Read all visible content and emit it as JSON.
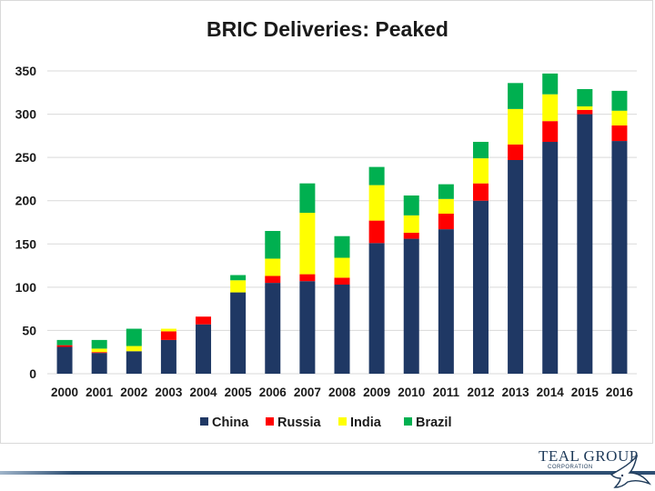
{
  "chart_data": {
    "type": "bar",
    "stacked": true,
    "title": "BRIC Deliveries: Peaked",
    "xlabel": "",
    "ylabel": "",
    "ylim": [
      0,
      350
    ],
    "yticks": [
      0,
      50,
      100,
      150,
      200,
      250,
      300,
      350
    ],
    "grid": true,
    "legend_position": "bottom",
    "categories": [
      "2000",
      "2001",
      "2002",
      "2003",
      "2004",
      "2005",
      "2006",
      "2007",
      "2008",
      "2009",
      "2010",
      "2011",
      "2012",
      "2013",
      "2014",
      "2015",
      "2016"
    ],
    "series": [
      {
        "name": "China",
        "color": "#1f3864",
        "values": [
          31,
          24,
          26,
          39,
          57,
          94,
          105,
          107,
          103,
          151,
          156,
          167,
          200,
          247,
          268,
          300,
          269
        ]
      },
      {
        "name": "Russia",
        "color": "#ff0000",
        "values": [
          2,
          1,
          0,
          10,
          9,
          0,
          8,
          8,
          8,
          26,
          7,
          18,
          20,
          18,
          24,
          5,
          18
        ]
      },
      {
        "name": "India",
        "color": "#ffff00",
        "values": [
          0,
          4,
          6,
          3,
          0,
          14,
          20,
          71,
          23,
          41,
          20,
          17,
          29,
          41,
          31,
          4,
          17
        ]
      },
      {
        "name": "Brazil",
        "color": "#00b050",
        "values": [
          6,
          10,
          20,
          0,
          0,
          6,
          32,
          34,
          25,
          21,
          23,
          17,
          19,
          30,
          24,
          20,
          23
        ]
      }
    ]
  },
  "logo": {
    "name": "TEAL GROUP",
    "sub": "CORPORATION",
    "icon": "bird-icon"
  }
}
